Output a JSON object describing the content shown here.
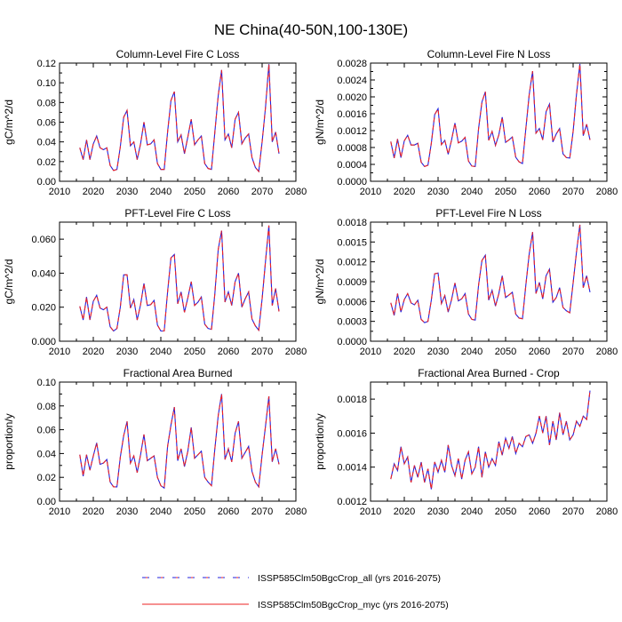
{
  "title": "NE China(40-50N,100-130E)",
  "colors": {
    "series_all": "#2222dd",
    "series_myc": "#ee2222",
    "axis": "#000000"
  },
  "legend": [
    {
      "label": "ISSP585Clm50BgcCrop_all (yrs 2016-2075)",
      "style": "dashed"
    },
    {
      "label": "ISSP585Clm50BgcCrop_myc (yrs 2016-2075)",
      "style": "solid"
    }
  ],
  "chart_data": [
    {
      "type": "line",
      "title": "Column-Level Fire C Loss",
      "xlabel": "",
      "ylabel": "gC/m^2/d",
      "xlim": [
        2010,
        2080
      ],
      "ylim": [
        0,
        0.12
      ],
      "xticks": [
        "2010",
        "2020",
        "2030",
        "2040",
        "2050",
        "2060",
        "2070",
        "2080"
      ],
      "yticks": [
        "0.00",
        "0.02",
        "0.04",
        "0.06",
        "0.08",
        "0.10",
        "0.12"
      ],
      "x_start": 2016,
      "x_step": 1,
      "series": [
        {
          "name": "ISSP585Clm50BgcCrop_all (yrs 2016-2075)",
          "values": [
            0.034,
            0.022,
            0.042,
            0.022,
            0.038,
            0.046,
            0.034,
            0.032,
            0.034,
            0.016,
            0.011,
            0.012,
            0.035,
            0.065,
            0.072,
            0.036,
            0.04,
            0.022,
            0.038,
            0.06,
            0.037,
            0.038,
            0.042,
            0.018,
            0.012,
            0.012,
            0.05,
            0.082,
            0.091,
            0.04,
            0.047,
            0.028,
            0.045,
            0.063,
            0.037,
            0.042,
            0.046,
            0.018,
            0.013,
            0.012,
            0.05,
            0.087,
            0.113,
            0.042,
            0.048,
            0.034,
            0.063,
            0.07,
            0.038,
            0.044,
            0.048,
            0.024,
            0.014,
            0.01,
            0.04,
            0.075,
            0.119,
            0.04,
            0.05,
            0.028
          ]
        }
      ]
    },
    {
      "type": "line",
      "title": "Column-Level Fire N Loss",
      "xlabel": "",
      "ylabel": "gN/m^2/d",
      "xlim": [
        2010,
        2080
      ],
      "ylim": [
        0,
        0.0028
      ],
      "xticks": [
        "2010",
        "2020",
        "2030",
        "2040",
        "2050",
        "2060",
        "2070",
        "2080"
      ],
      "yticks": [
        "0.0000",
        "0.0004",
        "0.0008",
        "0.0012",
        "0.0016",
        "0.0020",
        "0.0024",
        "0.0028"
      ],
      "x_start": 2016,
      "x_step": 1,
      "series": [
        {
          "name": "ISSP585Clm50BgcCrop_all (yrs 2016-2075)",
          "values": [
            0.00094,
            0.00055,
            0.001,
            0.00056,
            0.00096,
            0.00109,
            0.00086,
            0.00086,
            0.0009,
            0.00045,
            0.00035,
            0.00038,
            0.0009,
            0.00158,
            0.00172,
            0.00087,
            0.00097,
            0.00064,
            0.00098,
            0.00138,
            0.00091,
            0.00095,
            0.00104,
            0.00048,
            0.00036,
            0.00035,
            0.00125,
            0.00188,
            0.00212,
            0.00097,
            0.00118,
            0.00085,
            0.0011,
            0.00152,
            0.00092,
            0.00098,
            0.00105,
            0.00057,
            0.00046,
            0.00042,
            0.00125,
            0.00206,
            0.00261,
            0.00114,
            0.00125,
            0.00098,
            0.00165,
            0.00183,
            0.00093,
            0.00112,
            0.00125,
            0.00065,
            0.00056,
            0.00055,
            0.00118,
            0.00206,
            0.00278,
            0.00108,
            0.00135,
            0.00098
          ]
        }
      ]
    },
    {
      "type": "line",
      "title": "PFT-Level Fire C Loss",
      "xlabel": "",
      "ylabel": "gC/m^2/d",
      "xlim": [
        2010,
        2080
      ],
      "ylim": [
        0,
        0.07
      ],
      "xticks": [
        "2010",
        "2020",
        "2030",
        "2040",
        "2050",
        "2060",
        "2070",
        "2080"
      ],
      "yticks": [
        "0.000",
        "0.020",
        "0.040",
        "0.060"
      ],
      "x_start": 2016,
      "x_step": 1,
      "series": [
        {
          "name": "ISSP585Clm50BgcCrop_all (yrs 2016-2075)",
          "values": [
            0.0205,
            0.0125,
            0.026,
            0.0125,
            0.0235,
            0.027,
            0.0195,
            0.0185,
            0.02,
            0.0085,
            0.006,
            0.0075,
            0.02,
            0.039,
            0.039,
            0.0195,
            0.0245,
            0.0125,
            0.0215,
            0.034,
            0.021,
            0.0215,
            0.024,
            0.0095,
            0.006,
            0.006,
            0.029,
            0.049,
            0.051,
            0.022,
            0.029,
            0.017,
            0.0255,
            0.035,
            0.021,
            0.023,
            0.026,
            0.01,
            0.0075,
            0.007,
            0.028,
            0.054,
            0.065,
            0.023,
            0.029,
            0.021,
            0.035,
            0.04,
            0.02,
            0.025,
            0.029,
            0.013,
            0.009,
            0.0065,
            0.025,
            0.047,
            0.068,
            0.021,
            0.031,
            0.0175
          ]
        }
      ]
    },
    {
      "type": "line",
      "title": "PFT-Level Fire N Loss",
      "xlabel": "",
      "ylabel": "gN/m^2/d",
      "xlim": [
        2010,
        2080
      ],
      "ylim": [
        0,
        0.0018
      ],
      "xticks": [
        "2010",
        "2020",
        "2030",
        "2040",
        "2050",
        "2060",
        "2070",
        "2080"
      ],
      "yticks": [
        "0.0000",
        "0.0003",
        "0.0006",
        "0.0009",
        "0.0012",
        "0.0015",
        "0.0018"
      ],
      "x_start": 2016,
      "x_step": 1,
      "series": [
        {
          "name": "ISSP585Clm50BgcCrop_all (yrs 2016-2075)",
          "values": [
            0.00058,
            0.00039,
            0.00072,
            0.00044,
            0.00063,
            0.00072,
            0.00058,
            0.00055,
            0.00062,
            0.00033,
            0.00028,
            0.0003,
            0.00062,
            0.00102,
            0.00103,
            0.00057,
            0.00069,
            0.00044,
            0.00063,
            0.00088,
            0.00061,
            0.00064,
            0.00072,
            0.00041,
            0.00033,
            0.00032,
            0.00085,
            0.00122,
            0.0013,
            0.00062,
            0.00077,
            0.00053,
            0.00072,
            0.00099,
            0.00066,
            0.0007,
            0.00074,
            0.00041,
            0.00035,
            0.00034,
            0.00085,
            0.00132,
            0.00165,
            0.00072,
            0.00089,
            0.00064,
            0.00099,
            0.00109,
            0.00059,
            0.00066,
            0.00081,
            0.00051,
            0.00046,
            0.00043,
            0.00088,
            0.00135,
            0.00176,
            0.00081,
            0.00099,
            0.00074
          ]
        }
      ]
    },
    {
      "type": "line",
      "title": "Fractional Area Burned",
      "xlabel": "",
      "ylabel": "proportion/y",
      "xlim": [
        2010,
        2080
      ],
      "ylim": [
        0,
        0.1
      ],
      "xticks": [
        "2010",
        "2020",
        "2030",
        "2040",
        "2050",
        "2060",
        "2070",
        "2080"
      ],
      "yticks": [
        "0.00",
        "0.02",
        "0.04",
        "0.06",
        "0.08",
        "0.10"
      ],
      "x_start": 2016,
      "x_step": 1,
      "series": [
        {
          "name": "ISSP585Clm50BgcCrop_all (yrs 2016-2075)",
          "values": [
            0.039,
            0.021,
            0.039,
            0.026,
            0.038,
            0.049,
            0.031,
            0.032,
            0.035,
            0.016,
            0.012,
            0.012,
            0.037,
            0.055,
            0.067,
            0.032,
            0.038,
            0.024,
            0.039,
            0.056,
            0.034,
            0.036,
            0.038,
            0.02,
            0.013,
            0.011,
            0.046,
            0.064,
            0.079,
            0.034,
            0.044,
            0.029,
            0.042,
            0.062,
            0.036,
            0.039,
            0.042,
            0.02,
            0.016,
            0.013,
            0.044,
            0.072,
            0.09,
            0.035,
            0.044,
            0.033,
            0.057,
            0.067,
            0.036,
            0.041,
            0.046,
            0.025,
            0.016,
            0.012,
            0.039,
            0.063,
            0.088,
            0.033,
            0.044,
            0.031
          ]
        }
      ]
    },
    {
      "type": "line",
      "title": "Fractional Area Burned - Crop",
      "xlabel": "",
      "ylabel": "proportion/y",
      "xlim": [
        2010,
        2080
      ],
      "ylim": [
        0.0012,
        0.0019
      ],
      "xticks": [
        "2010",
        "2020",
        "2030",
        "2040",
        "2050",
        "2060",
        "2070",
        "2080"
      ],
      "yticks": [
        "0.0012",
        "0.0014",
        "0.0016",
        "0.0018"
      ],
      "x_start": 2016,
      "x_step": 1,
      "series": [
        {
          "name": "ISSP585Clm50BgcCrop_all (yrs 2016-2075)",
          "values": [
            0.00133,
            0.00142,
            0.00138,
            0.00152,
            0.00142,
            0.00146,
            0.00131,
            0.00141,
            0.00134,
            0.00143,
            0.00131,
            0.00139,
            0.00127,
            0.00143,
            0.00137,
            0.00144,
            0.00137,
            0.00153,
            0.00141,
            0.00135,
            0.00145,
            0.00133,
            0.00144,
            0.00149,
            0.00136,
            0.0014,
            0.00152,
            0.00134,
            0.00149,
            0.0014,
            0.00145,
            0.00141,
            0.00155,
            0.00147,
            0.00157,
            0.00151,
            0.00158,
            0.00148,
            0.00154,
            0.00152,
            0.00158,
            0.00159,
            0.00154,
            0.0016,
            0.0017,
            0.0016,
            0.0017,
            0.00153,
            0.00167,
            0.00156,
            0.00172,
            0.00159,
            0.00167,
            0.00156,
            0.00159,
            0.00167,
            0.00164,
            0.0017,
            0.00168,
            0.00185
          ]
        }
      ]
    }
  ]
}
